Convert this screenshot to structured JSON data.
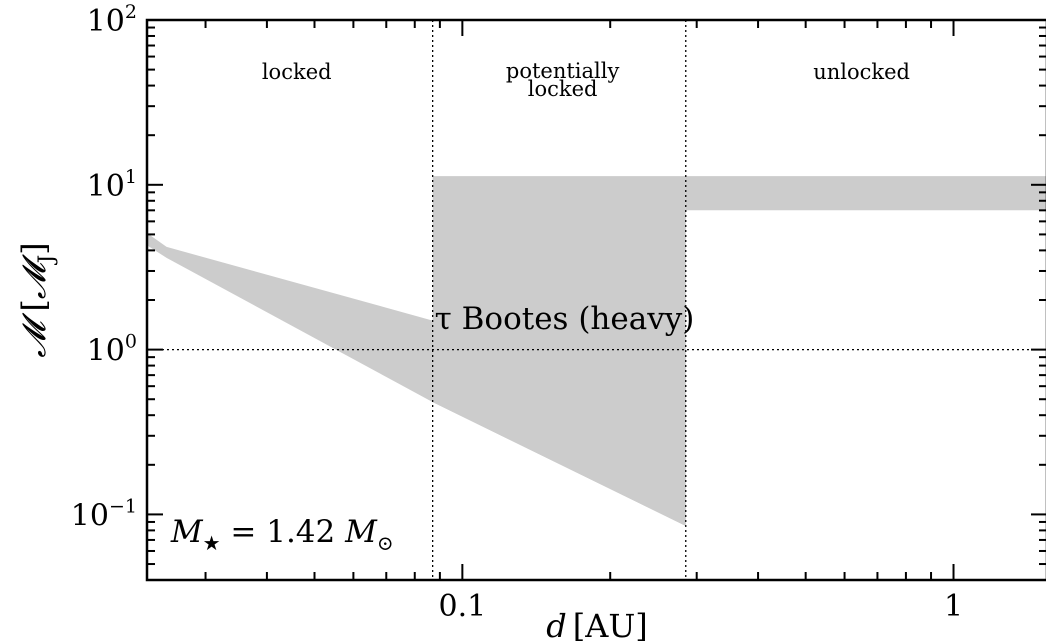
{
  "chart_data": {
    "type": "area",
    "x_scale": "log",
    "y_scale": "log",
    "xlim": [
      0.0228,
      1.55
    ],
    "ylim": [
      0.04,
      100
    ],
    "xlabel_var": "d",
    "xlabel_unit": "[AU]",
    "ylabel_var": "𝓜",
    "ylabel_unit_open": " [",
    "ylabel_unit_sym": "𝓜",
    "ylabel_unit_sub": "J",
    "ylabel_unit_close": "]",
    "x_ticks": [
      {
        "value": 0.1,
        "label": "0.1"
      },
      {
        "value": 1,
        "label": "1"
      }
    ],
    "y_ticks": [
      {
        "value": 0.1,
        "base": "10",
        "exp": "−1"
      },
      {
        "value": 1,
        "base": "10",
        "exp": "0"
      },
      {
        "value": 10,
        "base": "10",
        "exp": "1"
      },
      {
        "value": 100,
        "base": "10",
        "exp": "2"
      }
    ],
    "regions": [
      {
        "label": "locked",
        "x_center": 0.046
      },
      {
        "label": "potentially",
        "label2": "locked",
        "x_center": 0.16
      },
      {
        "label": "unlocked",
        "x_center": 0.65
      }
    ],
    "boundaries_x": [
      0.087,
      0.285
    ],
    "reference_y": 1,
    "bands": [
      {
        "x": [
          0.0228,
          0.025,
          0.087,
          0.285
        ],
        "upper": [
          5.1,
          4.2,
          1.5,
          0.085
        ],
        "lower": [
          4.3,
          3.6,
          0.48,
          0.085
        ]
      },
      {
        "x": [
          0.087,
          0.285
        ],
        "upper": [
          11.3,
          11.3
        ],
        "lower": [
          0.48,
          0.085
        ]
      },
      {
        "x": [
          0.285,
          1.55
        ],
        "upper": [
          11.3,
          11.3
        ],
        "lower": [
          7.0,
          7.0
        ]
      }
    ],
    "annotations": [
      {
        "id": "planet",
        "text": "τ Bootes (heavy)",
        "x": 0.087,
        "y": 1.55
      },
      {
        "id": "star_mass",
        "lhs": "M",
        "sub": "★",
        "eq": " = 1.42 ",
        "rhs": "M",
        "rhs_sub": "⊙",
        "x": 0.0255,
        "y": 0.078
      }
    ]
  }
}
